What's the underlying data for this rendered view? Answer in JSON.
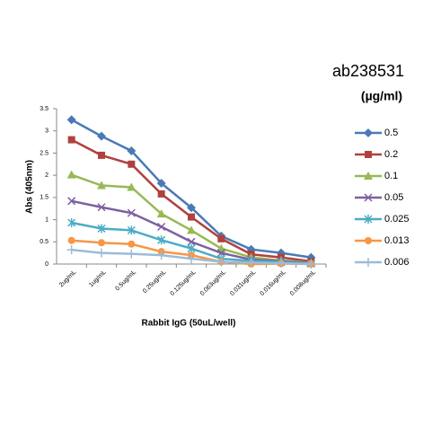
{
  "chart_data": {
    "type": "line",
    "title": "ab238531",
    "legend_title": "(µg/ml)",
    "x_label": "Rabbit IgG (50uL/well)",
    "y_label": "Abs (405nm)",
    "categories": [
      "2ug/mL",
      "1ug/mL",
      "0.5ug/mL",
      "0.25ug/mL",
      "0.125ug/mL",
      "0.063ug/mL",
      "0.031ug/mL",
      "0.016ug/mL",
      "0.008ug/mL"
    ],
    "series": [
      {
        "name": "0.5",
        "color": "#4a7ab5",
        "marker": "diamond",
        "values": [
          3.25,
          2.88,
          2.55,
          1.82,
          1.27,
          0.63,
          0.33,
          0.25,
          0.15
        ]
      },
      {
        "name": "0.2",
        "color": "#b0413e",
        "marker": "square",
        "values": [
          2.8,
          2.45,
          2.25,
          1.58,
          1.06,
          0.57,
          0.22,
          0.15,
          0.06
        ]
      },
      {
        "name": "0.1",
        "color": "#98b954",
        "marker": "triangle",
        "values": [
          2.01,
          1.77,
          1.73,
          1.13,
          0.76,
          0.35,
          0.15,
          0.08,
          0.03
        ]
      },
      {
        "name": "0.05",
        "color": "#7d60a0",
        "marker": "x",
        "values": [
          1.42,
          1.28,
          1.15,
          0.84,
          0.5,
          0.25,
          0.1,
          0.06,
          0.02
        ]
      },
      {
        "name": "0.025",
        "color": "#4bacc6",
        "marker": "star",
        "values": [
          0.93,
          0.8,
          0.76,
          0.54,
          0.35,
          0.12,
          0.07,
          0.04,
          0.01
        ]
      },
      {
        "name": "0.013",
        "color": "#f79646",
        "marker": "circle",
        "values": [
          0.53,
          0.48,
          0.45,
          0.28,
          0.2,
          0.05,
          0.0,
          0.01,
          0.0
        ]
      },
      {
        "name": "0.006",
        "color": "#9bbbd9",
        "marker": "plus",
        "values": [
          0.32,
          0.25,
          0.23,
          0.2,
          0.12,
          0.05,
          0.03,
          0.02,
          0.0
        ]
      }
    ],
    "ylim": [
      0,
      3.5
    ],
    "yticks": [
      0,
      0.5,
      1,
      1.5,
      2,
      2.5,
      3,
      3.5
    ],
    "grid": false,
    "legend": "right"
  }
}
